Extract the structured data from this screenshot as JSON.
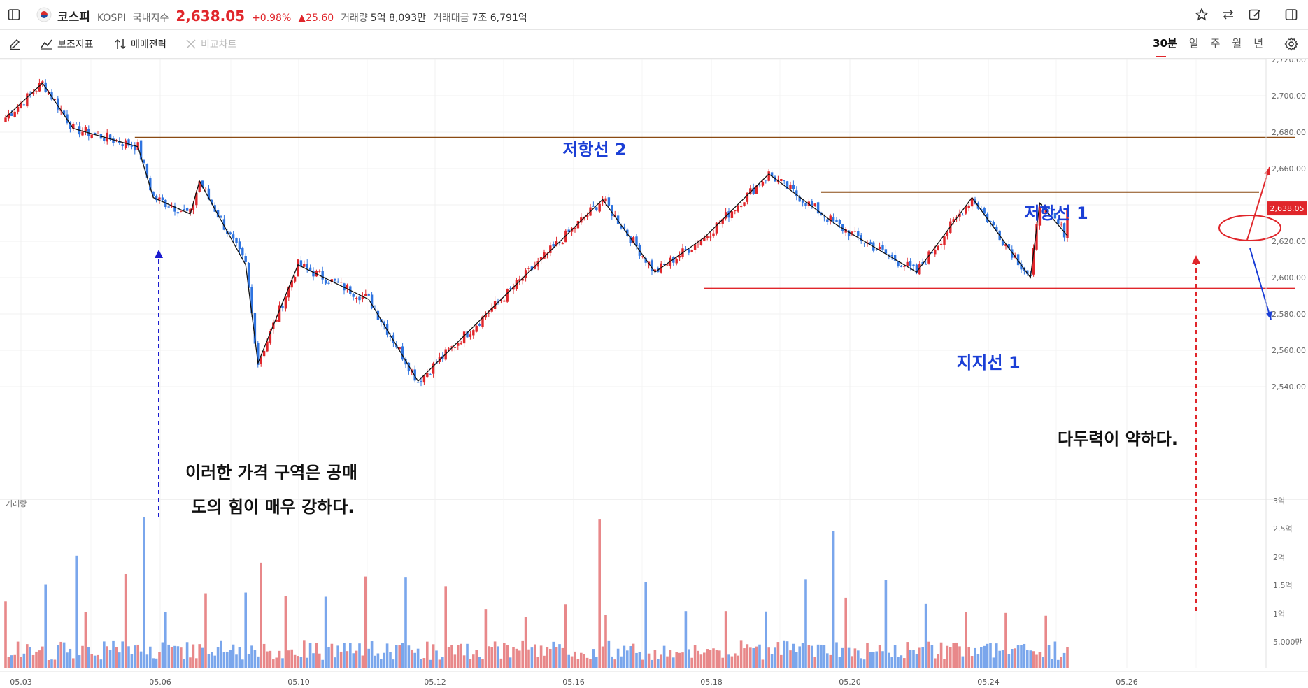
{
  "header": {
    "flag_icon": "korea-flag-icon",
    "name": "코스피",
    "code": "KOSPI",
    "category": "국내지수",
    "price": "2,638.05",
    "change_pct": "+0.98%",
    "change_abs": "25.60",
    "volume_label": "거래량",
    "volume_value": "5억 8,093만",
    "amount_label": "거래대금",
    "amount_value": "7조 6,791억"
  },
  "toolbar": {
    "indicators": "보조지표",
    "strategy": "매매전략",
    "compare": "비교차트",
    "periods": [
      "30분",
      "일",
      "주",
      "월",
      "년"
    ],
    "active_period": "30분"
  },
  "colors": {
    "up": "#e0262b",
    "down": "#2f74e0",
    "up_vol": "#e8888a",
    "down_vol": "#7aa6ec"
  },
  "chart_data": {
    "type": "candlestick",
    "y_ticks": [
      "2,720.00",
      "2,700.00",
      "2,680.00",
      "2,660.00",
      "2,640.00",
      "2,620.00",
      "2,600.00",
      "2,580.00",
      "2,560.00",
      "2,540.00"
    ],
    "ylim": [
      2533,
      2727
    ],
    "x_ticks": [
      "05.03",
      "05.06",
      "05.10",
      "05.12",
      "05.16",
      "05.18",
      "05.20",
      "05.24",
      "05.26"
    ],
    "last_price_label": "2,638.05",
    "volume_panel_label": "거래량",
    "volume_ticks": [
      "3억",
      "2.5억",
      "2억",
      "1.5억",
      "1억",
      "5,000만"
    ],
    "volume_max": 3.0,
    "zigzag_values": [
      2688,
      2707,
      2682,
      2672,
      2644,
      2635,
      2653,
      2607,
      2553,
      2607,
      2588,
      2543,
      2643,
      2603,
      2622,
      2657,
      2629,
      2603,
      2644,
      2600,
      2641,
      2623
    ],
    "zigzag_times": [
      "05.03",
      "05.03",
      "05.04",
      "05.06",
      "05.06",
      "05.06",
      "05.08",
      "05.09",
      "05.10",
      "05.11",
      "05.12",
      "05.13",
      "05.18",
      "05.19",
      "05.20",
      "05.22",
      "05.24",
      "05.25",
      "05.26",
      "05.27",
      "05.28",
      "05.28"
    ],
    "lines": {
      "resistance2": {
        "label": "저항선 2",
        "value": 2677
      },
      "resistance1": {
        "label": "저항선 1",
        "value": 2647
      },
      "support1": {
        "label": "지지선 1",
        "value": 2594
      }
    },
    "annotations": {
      "shorting_line1": "이러한 가격 구역은 공매",
      "shorting_line2": "도의 힘이 매우 강하다.",
      "weak_buying": "다두력이 약하다."
    }
  }
}
